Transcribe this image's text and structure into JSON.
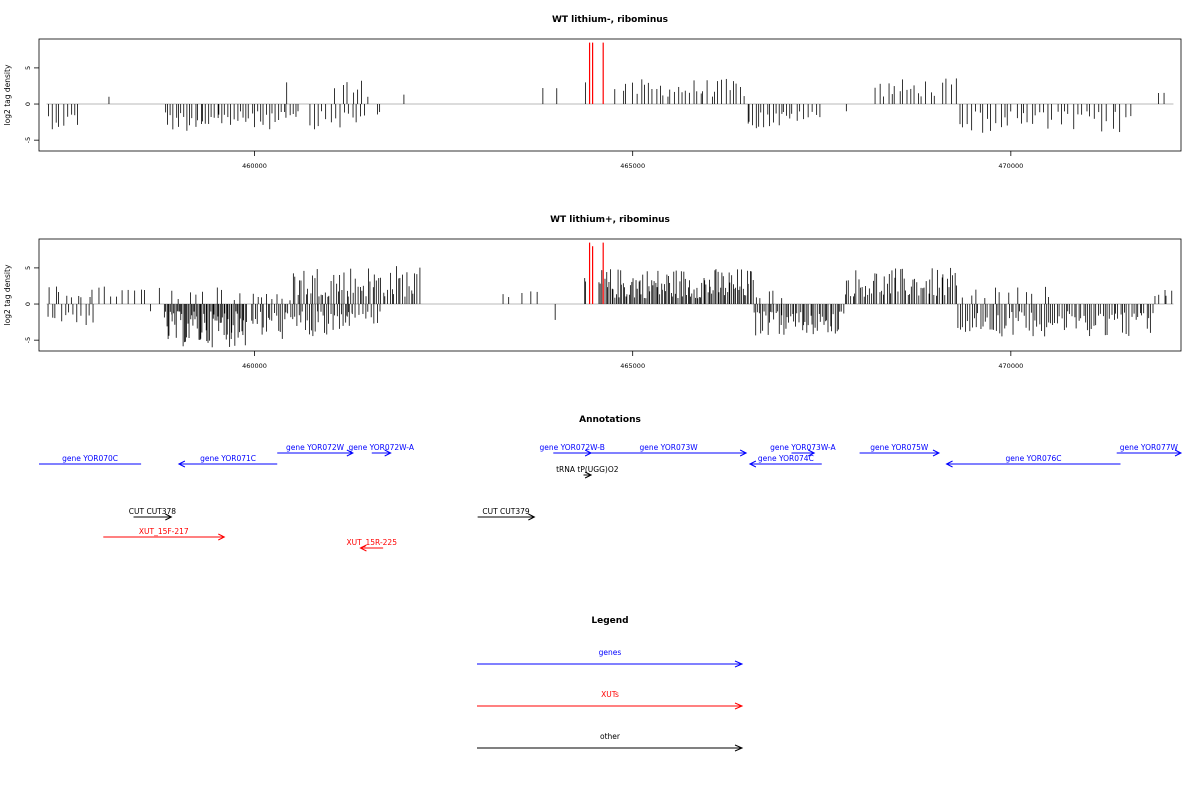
{
  "colors": {
    "gene": "#0000ff",
    "xut": "#ff0000",
    "other": "#000000",
    "bar": "#000000",
    "highlight": "#ff0000",
    "baseline": "#a0a0a0"
  },
  "chart_data": [
    {
      "type": "bar",
      "title": "WT lithium-, ribominus",
      "ylabel": "log2 tag density",
      "xlim": [
        457150,
        472250
      ],
      "ylim": [
        -6.5,
        9
      ],
      "xticks": [
        460000,
        465000,
        470000
      ],
      "xtick_labels": [
        "460000",
        "465000",
        "470000"
      ],
      "yticks": [
        -5,
        0,
        5
      ],
      "ytick_labels": [
        "-5",
        "0",
        "5"
      ],
      "highlight_bars": [
        {
          "x": 464430,
          "y": 8.5
        },
        {
          "x": 464470,
          "y": 8.5
        },
        {
          "x": 464610,
          "y": 8.5
        }
      ],
      "regions": [
        {
          "from": 457250,
          "to": 457700,
          "sign": -1,
          "count": 9,
          "min": 1.2,
          "max": 3.5
        },
        {
          "from": 458050,
          "to": 458100,
          "sign": 1,
          "count": 1,
          "min": 1.0,
          "max": 1.0
        },
        {
          "from": 458800,
          "to": 459600,
          "sign": -1,
          "count": 22,
          "min": 1.0,
          "max": 3.8
        },
        {
          "from": 459600,
          "to": 460600,
          "sign": -1,
          "count": 26,
          "min": 1.0,
          "max": 3.5
        },
        {
          "from": 460400,
          "to": 460450,
          "sign": 1,
          "count": 1,
          "min": 3.0,
          "max": 3.0
        },
        {
          "from": 460700,
          "to": 461500,
          "sign": -1,
          "count": 14,
          "min": 1.0,
          "max": 3.5
        },
        {
          "from": 461050,
          "to": 461550,
          "sign": 1,
          "count": 7,
          "min": 1.0,
          "max": 3.6
        },
        {
          "from": 461600,
          "to": 461700,
          "sign": -1,
          "count": 2,
          "min": 1.0,
          "max": 2.5
        },
        {
          "from": 461950,
          "to": 462000,
          "sign": 1,
          "count": 1,
          "min": 1.3,
          "max": 1.3
        },
        {
          "from": 463800,
          "to": 464050,
          "sign": 1,
          "count": 2,
          "min": 2.0,
          "max": 2.3
        },
        {
          "from": 464350,
          "to": 464400,
          "sign": 1,
          "count": 1,
          "min": 3.0,
          "max": 3.0
        },
        {
          "from": 464750,
          "to": 465050,
          "sign": 1,
          "count": 4,
          "min": 1.5,
          "max": 3.0
        },
        {
          "from": 465050,
          "to": 466500,
          "sign": 1,
          "count": 30,
          "min": 1.0,
          "max": 3.5
        },
        {
          "from": 466500,
          "to": 467100,
          "sign": -1,
          "count": 16,
          "min": 1.0,
          "max": 3.5
        },
        {
          "from": 467100,
          "to": 467500,
          "sign": -1,
          "count": 8,
          "min": 1.0,
          "max": 2.5
        },
        {
          "from": 467800,
          "to": 467850,
          "sign": -1,
          "count": 1,
          "min": 1.0,
          "max": 1.0
        },
        {
          "from": 468200,
          "to": 468800,
          "sign": 1,
          "count": 12,
          "min": 1.0,
          "max": 3.5
        },
        {
          "from": 468800,
          "to": 469300,
          "sign": 1,
          "count": 8,
          "min": 1.0,
          "max": 3.6
        },
        {
          "from": 469300,
          "to": 470800,
          "sign": -1,
          "count": 28,
          "min": 1.0,
          "max": 4.0
        },
        {
          "from": 470800,
          "to": 471600,
          "sign": -1,
          "count": 14,
          "min": 1.0,
          "max": 4.2
        },
        {
          "from": 471950,
          "to": 472050,
          "sign": 1,
          "count": 2,
          "min": 1.5,
          "max": 1.6
        }
      ]
    },
    {
      "type": "bar",
      "title": "WT lithium+, ribominus",
      "ylabel": "log2 tag density",
      "xlim": [
        457150,
        472250
      ],
      "ylim": [
        -6.5,
        9
      ],
      "xticks": [
        460000,
        465000,
        470000
      ],
      "xtick_labels": [
        "460000",
        "465000",
        "470000"
      ],
      "yticks": [
        -5,
        0,
        5
      ],
      "ytick_labels": [
        "-5",
        "0",
        "5"
      ],
      "highlight_bars": [
        {
          "x": 464430,
          "y": 8.5
        },
        {
          "x": 464470,
          "y": 8.0
        },
        {
          "x": 464610,
          "y": 8.5
        }
      ],
      "regions": [
        {
          "from": 457250,
          "to": 457900,
          "sign": -1,
          "count": 12,
          "min": 1.0,
          "max": 3.0
        },
        {
          "from": 457250,
          "to": 458600,
          "sign": 1,
          "count": 18,
          "min": 0.8,
          "max": 2.5
        },
        {
          "from": 458600,
          "to": 458650,
          "sign": -1,
          "count": 1,
          "min": 1.0,
          "max": 1.0
        },
        {
          "from": 458800,
          "to": 459900,
          "sign": -1,
          "count": 70,
          "min": 1.0,
          "max": 6.0
        },
        {
          "from": 458700,
          "to": 459900,
          "sign": 1,
          "count": 10,
          "min": 0.5,
          "max": 2.5
        },
        {
          "from": 459950,
          "to": 461300,
          "sign": -1,
          "count": 50,
          "min": 1.0,
          "max": 5.0
        },
        {
          "from": 459950,
          "to": 460500,
          "sign": 1,
          "count": 8,
          "min": 0.5,
          "max": 1.5
        },
        {
          "from": 460500,
          "to": 462200,
          "sign": 1,
          "count": 60,
          "min": 1.0,
          "max": 5.5
        },
        {
          "from": 461200,
          "to": 461700,
          "sign": -1,
          "count": 12,
          "min": 1.0,
          "max": 3.0
        },
        {
          "from": 463200,
          "to": 463800,
          "sign": 1,
          "count": 5,
          "min": 0.8,
          "max": 1.8
        },
        {
          "from": 463950,
          "to": 464000,
          "sign": -1,
          "count": 1,
          "min": 2.2,
          "max": 2.2
        },
        {
          "from": 464350,
          "to": 464400,
          "sign": 1,
          "count": 2,
          "min": 2.5,
          "max": 4.0
        },
        {
          "from": 464550,
          "to": 466600,
          "sign": 1,
          "count": 110,
          "min": 0.8,
          "max": 5.0
        },
        {
          "from": 466600,
          "to": 467800,
          "sign": -1,
          "count": 55,
          "min": 1.0,
          "max": 4.5
        },
        {
          "from": 466600,
          "to": 467000,
          "sign": 1,
          "count": 5,
          "min": 0.8,
          "max": 2.0
        },
        {
          "from": 467800,
          "to": 469300,
          "sign": 1,
          "count": 60,
          "min": 1.0,
          "max": 5.0
        },
        {
          "from": 469300,
          "to": 471900,
          "sign": -1,
          "count": 90,
          "min": 1.0,
          "max": 4.5
        },
        {
          "from": 469300,
          "to": 470600,
          "sign": 1,
          "count": 12,
          "min": 0.8,
          "max": 2.5
        },
        {
          "from": 471900,
          "to": 472150,
          "sign": 1,
          "count": 5,
          "min": 1.0,
          "max": 2.5
        }
      ]
    }
  ],
  "annotations": {
    "title": "Annotations",
    "xlim": [
      457150,
      472250
    ],
    "genes": [
      {
        "label": "gene YOR070C",
        "from": 457150,
        "to": 458500,
        "strand": "none",
        "row": 2
      },
      {
        "label": "gene YOR071C",
        "from": 459000,
        "to": 460300,
        "strand": "-",
        "row": 2
      },
      {
        "label": "gene YOR072W",
        "from": 460300,
        "to": 461300,
        "strand": "+",
        "row": 1
      },
      {
        "label": "gene YOR072W-A",
        "from": 461550,
        "to": 461800,
        "strand": "+",
        "row": 1
      },
      {
        "label": "gene YOR072W-B",
        "from": 463950,
        "to": 464450,
        "strand": "+",
        "row": 1
      },
      {
        "label": "gene YOR073W",
        "from": 464450,
        "to": 466500,
        "strand": "+",
        "row": 1
      },
      {
        "label": "gene YOR073W-A",
        "from": 467100,
        "to": 467400,
        "strand": "+",
        "row": 1
      },
      {
        "label": "gene YOR074C",
        "from": 466550,
        "to": 467500,
        "strand": "-",
        "row": 2
      },
      {
        "label": "gene YOR075W",
        "from": 468000,
        "to": 469050,
        "strand": "+",
        "row": 1
      },
      {
        "label": "gene YOR076C",
        "from": 469150,
        "to": 471450,
        "strand": "-",
        "row": 2
      },
      {
        "label": "gene YOR077W",
        "from": 471400,
        "to": 472250,
        "strand": "+",
        "row": 1
      }
    ],
    "tRNA": [
      {
        "label": "tRNA tP(UGG)O2",
        "from": 464350,
        "to": 464450,
        "strand": "+",
        "row": 3
      }
    ],
    "cuts": [
      {
        "label": "CUT CUT378",
        "from": 458400,
        "to": 458900,
        "strand": "+",
        "row": 4
      },
      {
        "label": "CUT CUT379",
        "from": 462950,
        "to": 463700,
        "strand": "+",
        "row": 4
      }
    ],
    "xuts": [
      {
        "label": "XUT_15F-217",
        "from": 458000,
        "to": 459600,
        "strand": "+",
        "row": 5
      },
      {
        "label": "XUT_15R-225",
        "from": 461400,
        "to": 461700,
        "strand": "-",
        "row": 6
      }
    ]
  },
  "legend": {
    "title": "Legend",
    "items": [
      {
        "label": "genes",
        "color": "#0000ff"
      },
      {
        "label": "XUTs",
        "color": "#ff0000"
      },
      {
        "label": "other",
        "color": "#000000"
      }
    ]
  }
}
